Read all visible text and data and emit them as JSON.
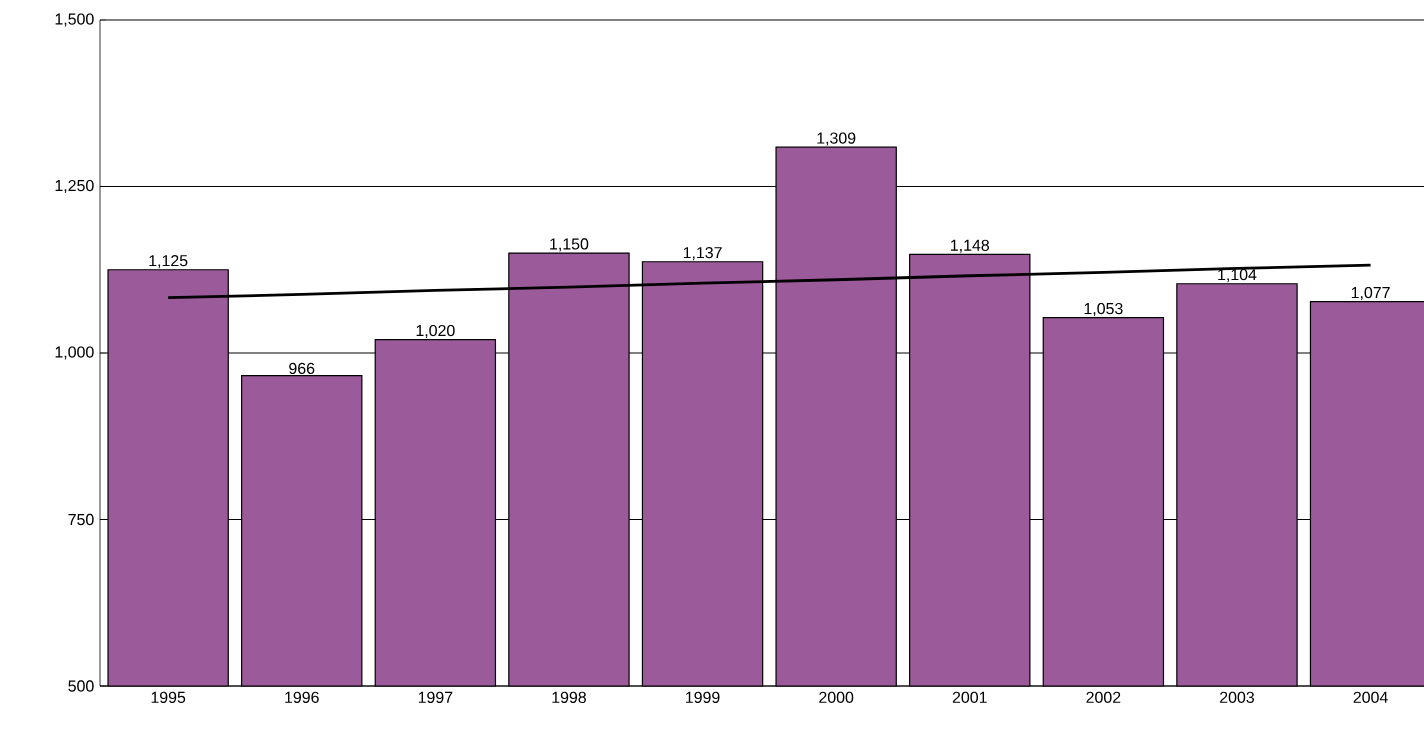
{
  "chart_data": {
    "type": "bar",
    "categories": [
      "1995",
      "1996",
      "1997",
      "1998",
      "1999",
      "2000",
      "2001",
      "2002",
      "2003",
      "2004"
    ],
    "series": [
      {
        "color": "#9b5b9b",
        "values": [
          1125,
          966,
          1020,
          1150,
          1137,
          1309,
          1148,
          1053,
          1104,
          1077
        ],
        "value_labels": [
          "1,125",
          "966",
          "1,020",
          "1,150",
          "1,137",
          "1,309",
          "1,148",
          "1,053",
          "1,104",
          "1,077"
        ]
      },
      {
        "type": "line",
        "color": "#000000",
        "values": [
          1083,
          1088,
          1094,
          1099,
          1105,
          1110,
          1116,
          1121,
          1127,
          1132
        ]
      }
    ],
    "ylim": [
      500,
      1500
    ],
    "yticks": [
      {
        "value": 500,
        "label": "500"
      },
      {
        "value": 750,
        "label": "750"
      },
      {
        "value": 1000,
        "label": "1,000"
      },
      {
        "value": 1250,
        "label": "1,250"
      },
      {
        "value": 1500,
        "label": "1,500"
      }
    ],
    "grid": "y",
    "marker": "none",
    "line_style": "solid"
  }
}
